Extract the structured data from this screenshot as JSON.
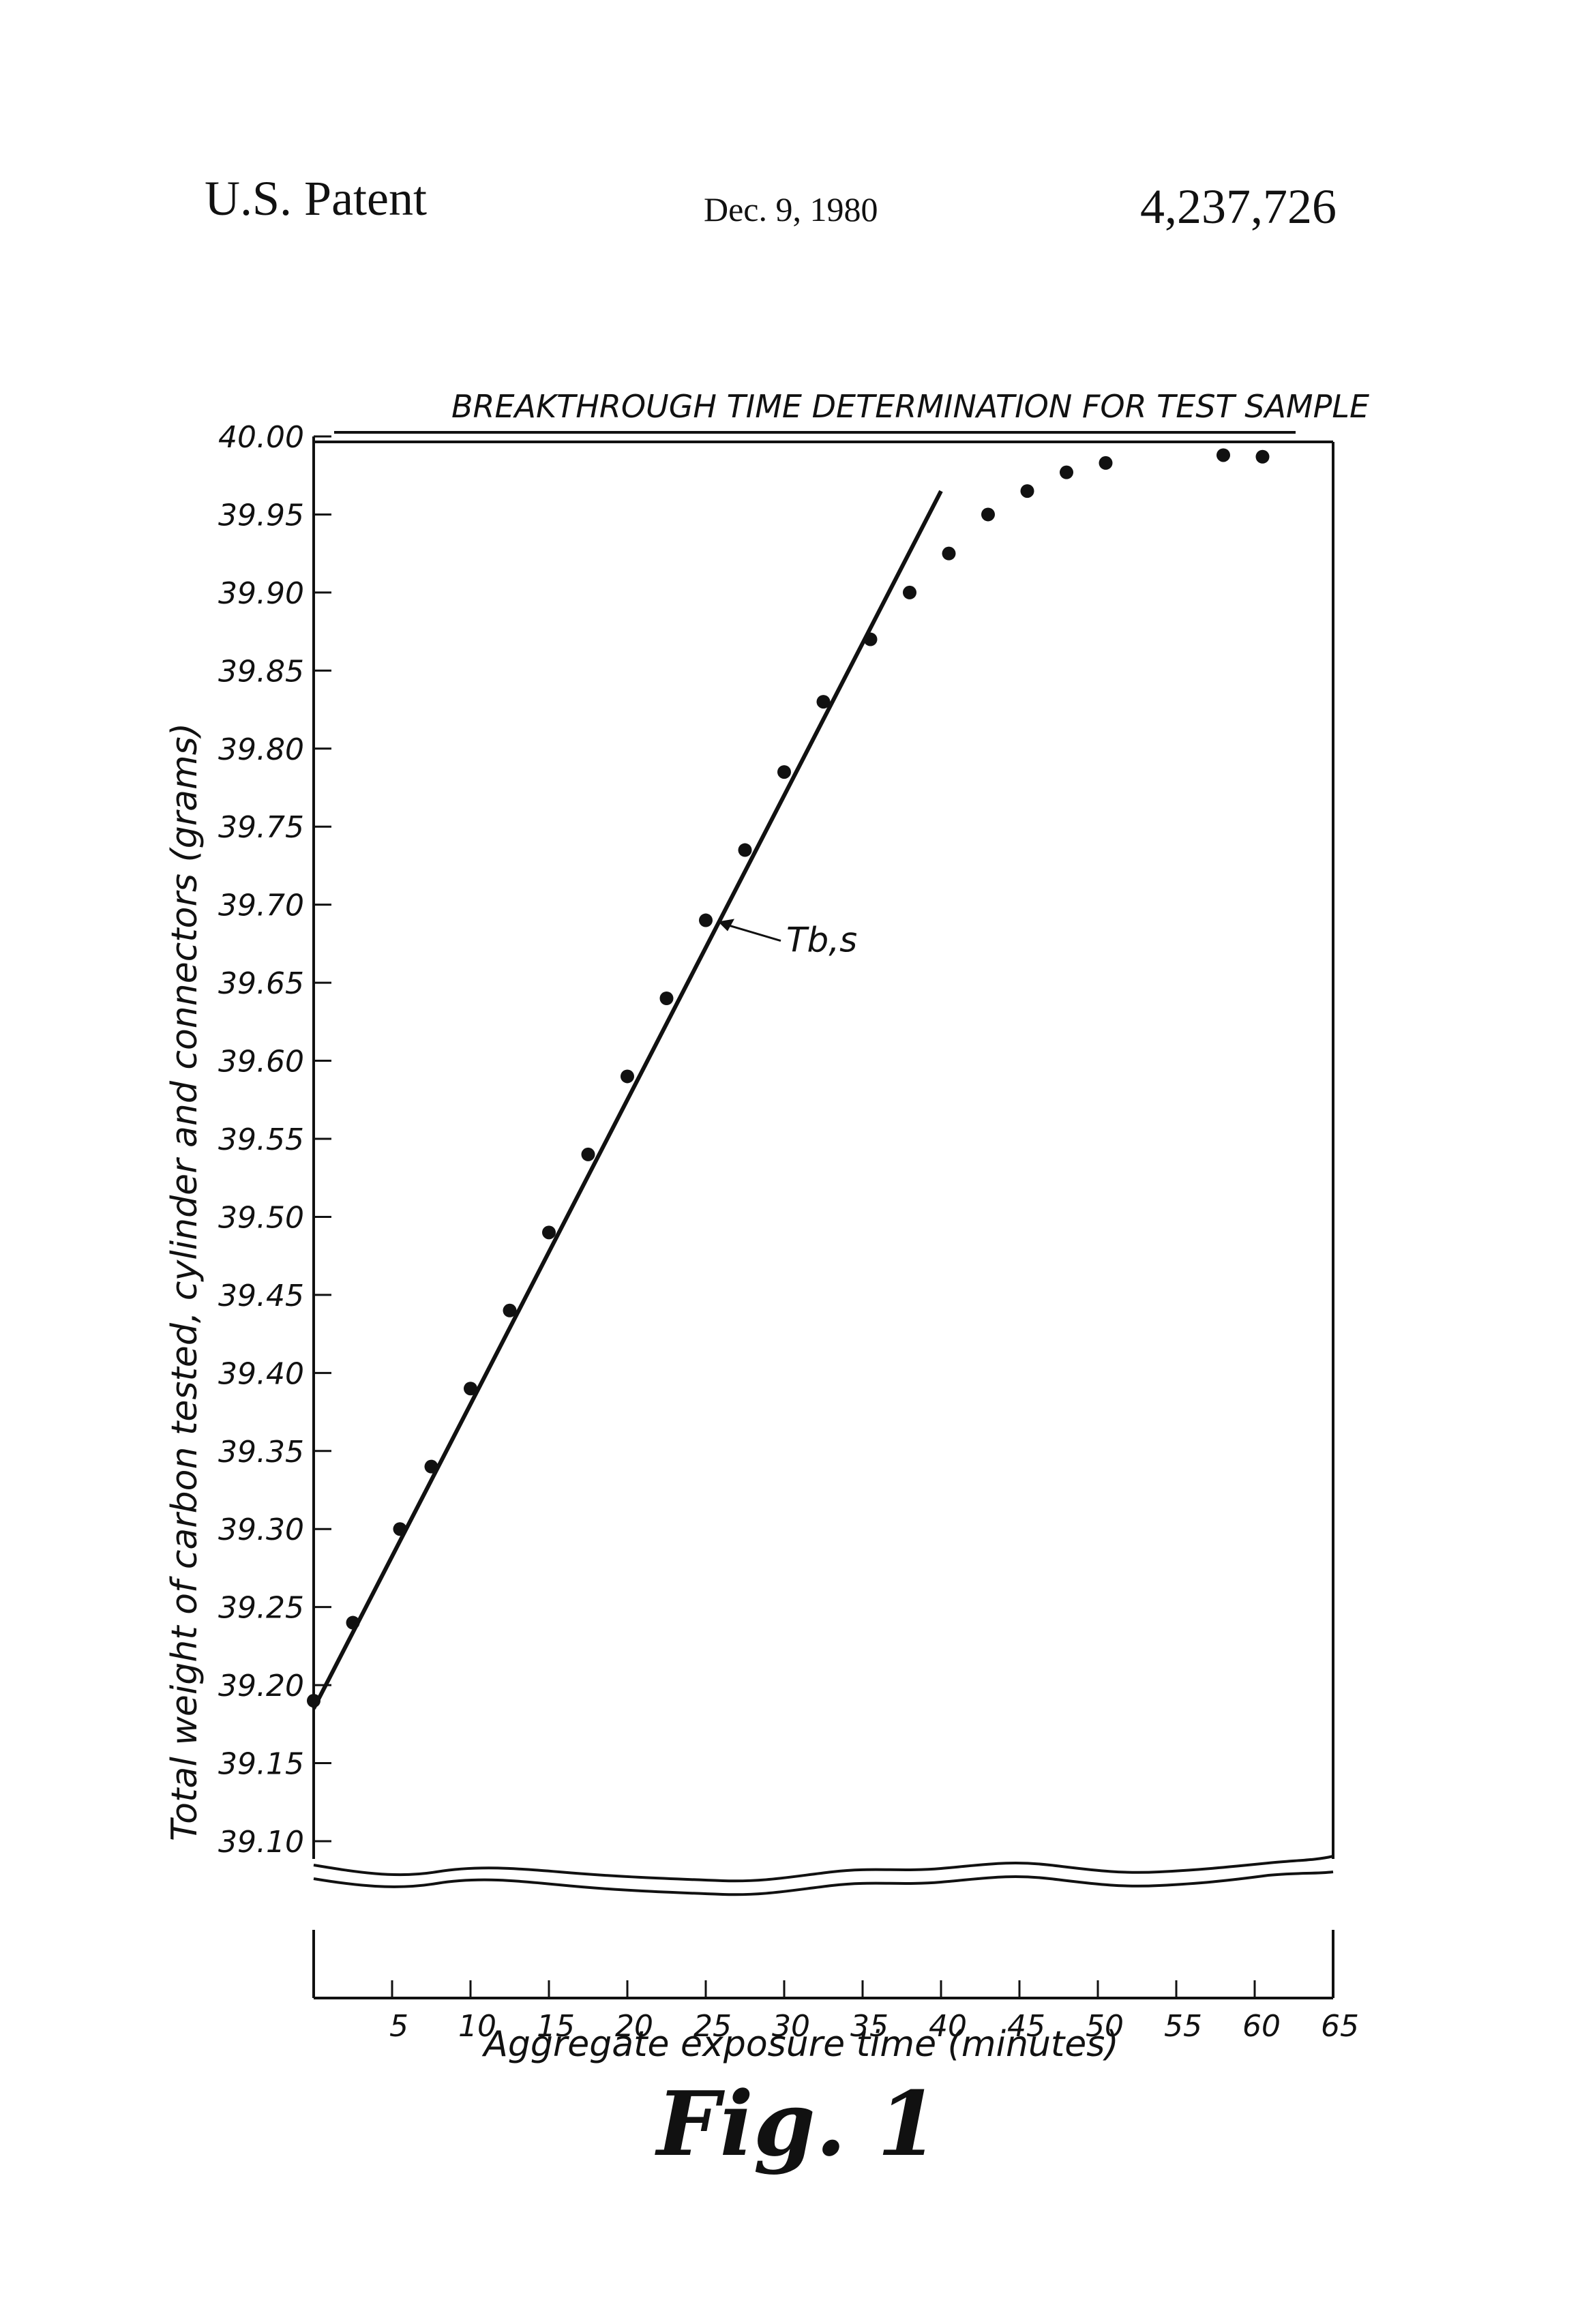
{
  "header": {
    "patent_label": "U.S. Patent",
    "date": "Dec. 9, 1980",
    "patent_number": "4,237,726"
  },
  "figure_label": "Fig. 1",
  "chart_data": {
    "type": "scatter",
    "title": "BREAKTHROUGH TIME DETERMINATION FOR TEST SAMPLE",
    "xlabel": "Aggregate exposure time (minutes)",
    "ylabel": "Total weight of carbon tested, cylinder and connectors (grams)",
    "xlim": [
      0,
      65
    ],
    "ylim": [
      39.1,
      40.0
    ],
    "axis_break": "below 39.10",
    "grid": false,
    "x_ticks": [
      5,
      10,
      15,
      20,
      25,
      30,
      35,
      40,
      45,
      50,
      55,
      60,
      65
    ],
    "x_tick_labels": [
      "5",
      "10",
      "15",
      "20",
      "25",
      "30",
      "35",
      "40",
      "45",
      "50",
      "55",
      "60",
      "65"
    ],
    "y_ticks": [
      39.1,
      39.15,
      39.2,
      39.25,
      39.3,
      39.35,
      39.4,
      39.45,
      39.5,
      39.55,
      39.6,
      39.65,
      39.7,
      39.75,
      39.8,
      39.85,
      39.9,
      39.95,
      40.0
    ],
    "y_tick_labels": [
      "39.10",
      "39.15",
      "39.20",
      "39.25",
      "39.30",
      "39.35",
      "39.40",
      "39.45",
      "39.50",
      "39.55",
      "39.60",
      "39.65",
      "39.70",
      "39.75",
      "39.80",
      "39.85",
      "39.90",
      "39.95",
      "40.00"
    ],
    "points": [
      {
        "x": 0,
        "y": 39.19
      },
      {
        "x": 2.5,
        "y": 39.24
      },
      {
        "x": 5.5,
        "y": 39.3
      },
      {
        "x": 7.5,
        "y": 39.34
      },
      {
        "x": 10,
        "y": 39.39
      },
      {
        "x": 12.5,
        "y": 39.44
      },
      {
        "x": 15,
        "y": 39.49
      },
      {
        "x": 17.5,
        "y": 39.54
      },
      {
        "x": 20,
        "y": 39.59
      },
      {
        "x": 22.5,
        "y": 39.64
      },
      {
        "x": 25,
        "y": 39.69
      },
      {
        "x": 27.5,
        "y": 39.735
      },
      {
        "x": 30,
        "y": 39.785
      },
      {
        "x": 32.5,
        "y": 39.83
      },
      {
        "x": 35.5,
        "y": 39.87
      },
      {
        "x": 38,
        "y": 39.9
      },
      {
        "x": 40.5,
        "y": 39.925
      },
      {
        "x": 43,
        "y": 39.95
      },
      {
        "x": 45.5,
        "y": 39.965
      },
      {
        "x": 48,
        "y": 39.977
      },
      {
        "x": 50.5,
        "y": 39.983
      },
      {
        "x": 58,
        "y": 39.988
      },
      {
        "x": 60.5,
        "y": 39.987
      }
    ],
    "fit_line": {
      "x": [
        0,
        40
      ],
      "y": [
        39.185,
        39.965
      ]
    },
    "annotation": {
      "text": "Tb,s",
      "x": 25,
      "y": 39.69
    }
  }
}
